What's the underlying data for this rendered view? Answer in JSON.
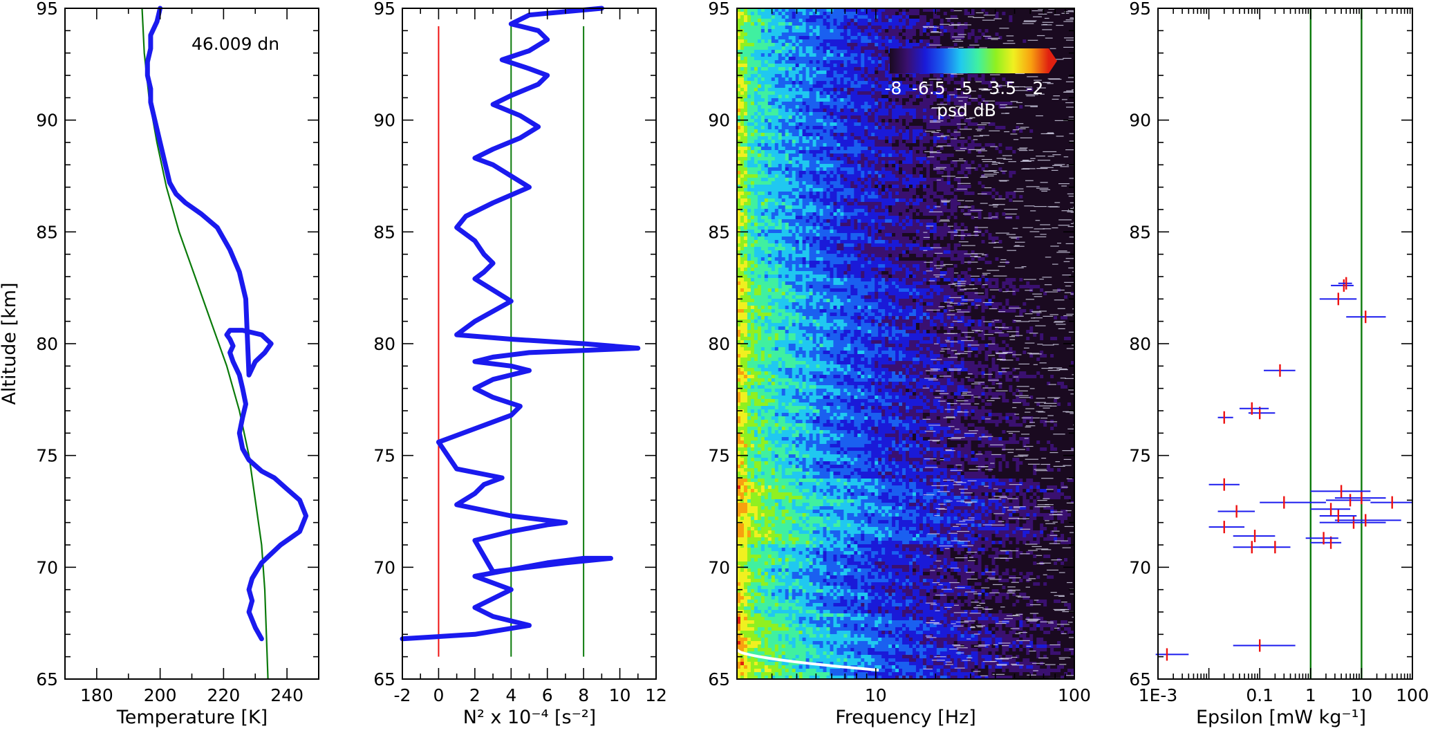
{
  "figure": {
    "ylabel": "Altitude [km]"
  },
  "chart_data": [
    {
      "type": "line",
      "xlabel": "Temperature [K]",
      "ylabel": "Altitude [km]",
      "xlim": [
        170,
        250
      ],
      "ylim": [
        65,
        95
      ],
      "xticks": [
        180,
        200,
        220,
        240
      ],
      "yticks": [
        65,
        70,
        75,
        80,
        85,
        90,
        95
      ],
      "annotation": "46.009 dn",
      "series": [
        {
          "color": "#1a1aee",
          "x": [
            232,
            230,
            228,
            229,
            228,
            229,
            232,
            238,
            244,
            246,
            244,
            240,
            236,
            232,
            228,
            226,
            225,
            226,
            227,
            226,
            225,
            223,
            222,
            223,
            222,
            221,
            222,
            226,
            232,
            235,
            233,
            230,
            228,
            227,
            226,
            225,
            222,
            218,
            213,
            208,
            205,
            203,
            202,
            201,
            200,
            199,
            198,
            197,
            197,
            196,
            196,
            197,
            197,
            199,
            200
          ],
          "y": [
            66.8,
            67.3,
            68,
            68.5,
            69,
            69.5,
            70.2,
            71,
            71.6,
            72.3,
            73,
            73.5,
            74,
            74.3,
            74.8,
            75.3,
            76,
            76.7,
            77.3,
            78,
            78.6,
            79.2,
            79.6,
            79.9,
            80.2,
            80.4,
            80.6,
            80.6,
            80.4,
            80,
            79.6,
            79.2,
            78.6,
            82,
            82.6,
            83.2,
            84.2,
            85.2,
            85.8,
            86.3,
            86.7,
            87.2,
            87.8,
            88.4,
            89,
            89.6,
            90.2,
            90.8,
            91.4,
            92,
            92.6,
            93.2,
            93.8,
            94.4,
            95
          ]
        },
        {
          "color": "#0a7a0a",
          "x": [
            234,
            233.5,
            233,
            232,
            230,
            228,
            225,
            221,
            216,
            211,
            206,
            202,
            199,
            196.5,
            195,
            194.3
          ],
          "y": [
            65,
            67,
            69,
            71,
            73,
            75,
            77,
            79,
            81,
            83,
            85,
            87,
            89,
            91,
            93,
            95
          ]
        }
      ]
    },
    {
      "type": "line",
      "xlabel": "N² x 10⁻⁴ [s⁻²]",
      "ylabel": "Altitude [km]",
      "xlim": [
        -2,
        12
      ],
      "ylim": [
        65,
        95
      ],
      "xticks": [
        -2,
        0,
        2,
        4,
        6,
        8,
        10,
        12
      ],
      "yticks": [
        65,
        70,
        75,
        80,
        85,
        90,
        95
      ],
      "reference_lines": [
        {
          "x": 0,
          "color": "#ee1111"
        },
        {
          "x": 4,
          "color": "#0a7a0a"
        },
        {
          "x": 8,
          "color": "#0a7a0a"
        }
      ],
      "series": [
        {
          "color": "#1a1aee",
          "x": [
            -2,
            2,
            5,
            3,
            2,
            3,
            4,
            3,
            2,
            4,
            6,
            8,
            9.5,
            7,
            5,
            3,
            2,
            4,
            6,
            7,
            4,
            1,
            2,
            2.5,
            3.5,
            1,
            0,
            1,
            2,
            3,
            4,
            4.5,
            3,
            2,
            3,
            5,
            4,
            2,
            3,
            5,
            8,
            11,
            8,
            4,
            1,
            2,
            4,
            3,
            2,
            2.5,
            3,
            2.5,
            2,
            1,
            1.5,
            3,
            5,
            4,
            3,
            2,
            3,
            4.5,
            5.5,
            4.5,
            3,
            4,
            5.5,
            6,
            5,
            3.5,
            5,
            6,
            5.5,
            4,
            5,
            9
          ],
          "y": [
            66.8,
            67,
            67.4,
            67.8,
            68.2,
            68.6,
            69,
            69.3,
            69.6,
            69.9,
            70.2,
            70.4,
            70.4,
            70.2,
            70,
            69.8,
            71.2,
            71.6,
            71.9,
            72,
            72.3,
            72.8,
            73.3,
            73.7,
            74,
            74.4,
            75.6,
            75.9,
            76.2,
            76.5,
            76.8,
            77.2,
            77.6,
            78,
            78.4,
            78.8,
            79,
            79.2,
            79.4,
            79.6,
            79.7,
            79.8,
            80,
            80.2,
            80.4,
            81,
            81.9,
            82.4,
            82.9,
            83.2,
            83.6,
            84,
            84.6,
            85.2,
            85.7,
            86.3,
            87,
            87.5,
            88,
            88.3,
            88.7,
            89.2,
            89.7,
            90.2,
            90.7,
            91.1,
            91.6,
            92,
            92.3,
            92.7,
            93.1,
            93.6,
            94,
            94.3,
            94.7,
            95
          ]
        }
      ]
    },
    {
      "type": "heatmap",
      "xlabel": "Frequency [Hz]",
      "ylabel": "Altitude [km]",
      "xscale": "log",
      "xlim": [
        2,
        100
      ],
      "ylim": [
        65,
        95
      ],
      "xticks": [
        10,
        100
      ],
      "yticks": [
        65,
        70,
        75,
        80,
        85,
        90,
        95
      ],
      "colorbar": {
        "ticks": [
          "-8",
          "-6.5",
          "-5",
          "-3.5",
          "-2"
        ],
        "label": "psd dB",
        "colors": [
          "#1a0a20",
          "#3a1070",
          "#1a1ad8",
          "#1a60f0",
          "#20c8f0",
          "#40f0a0",
          "#90f020",
          "#f0f020",
          "#f8a010",
          "#e02010"
        ]
      }
    },
    {
      "type": "scatter",
      "xlabel": "Epsilon [mW kg⁻¹]",
      "ylabel": "Altitude [km]",
      "xscale": "log",
      "xlim": [
        0.001,
        100
      ],
      "ylim": [
        65,
        95
      ],
      "xtick_labels": [
        {
          "value": 0.001,
          "label": "1E-3"
        },
        {
          "value": 0.1,
          "label": "0.1"
        },
        {
          "value": 1,
          "label": "1"
        },
        {
          "value": 10,
          "label": "10"
        },
        {
          "value": 100,
          "label": "100"
        }
      ],
      "yticks": [
        65,
        70,
        75,
        80,
        85,
        90,
        95
      ],
      "reference_lines": [
        {
          "x": 1,
          "color": "#0a7a0a"
        },
        {
          "x": 10,
          "color": "#0a7a0a"
        }
      ],
      "points": [
        {
          "x": 0.0015,
          "y": 66.1,
          "xerr": [
            0.0009,
            0.004
          ]
        },
        {
          "x": 0.1,
          "y": 66.5,
          "xerr": [
            0.03,
            0.5
          ]
        },
        {
          "x": 0.07,
          "y": 70.9,
          "xerr": [
            0.03,
            0.2
          ]
        },
        {
          "x": 0.2,
          "y": 70.9,
          "xerr": [
            0.1,
            0.4
          ]
        },
        {
          "x": 2.5,
          "y": 71.1,
          "xerr": [
            1.0,
            4.0
          ]
        },
        {
          "x": 0.08,
          "y": 71.4,
          "xerr": [
            0.03,
            0.2
          ]
        },
        {
          "x": 1.8,
          "y": 71.3,
          "xerr": [
            0.8,
            3.5
          ]
        },
        {
          "x": 0.02,
          "y": 71.8,
          "xerr": [
            0.01,
            0.05
          ]
        },
        {
          "x": 7,
          "y": 72.0,
          "xerr": [
            1.5,
            30
          ]
        },
        {
          "x": 12,
          "y": 72.1,
          "xerr": [
            3,
            60
          ]
        },
        {
          "x": 3.5,
          "y": 72.3,
          "xerr": [
            1.5,
            8
          ]
        },
        {
          "x": 0.035,
          "y": 72.5,
          "xerr": [
            0.015,
            0.08
          ]
        },
        {
          "x": 2.5,
          "y": 72.6,
          "xerr": [
            1.0,
            6
          ]
        },
        {
          "x": 0.3,
          "y": 72.9,
          "xerr": [
            0.1,
            2
          ]
        },
        {
          "x": 6,
          "y": 73.0,
          "xerr": [
            2,
            15
          ]
        },
        {
          "x": 10,
          "y": 73.1,
          "xerr": [
            3,
            30
          ]
        },
        {
          "x": 40,
          "y": 72.9,
          "xerr": [
            15,
            100
          ]
        },
        {
          "x": 4,
          "y": 73.4,
          "xerr": [
            1,
            15
          ]
        },
        {
          "x": 0.02,
          "y": 73.7,
          "xerr": [
            0.01,
            0.04
          ]
        },
        {
          "x": 0.02,
          "y": 76.7,
          "xerr": [
            0.015,
            0.03
          ]
        },
        {
          "x": 0.1,
          "y": 76.9,
          "xerr": [
            0.06,
            0.2
          ]
        },
        {
          "x": 0.07,
          "y": 77.1,
          "xerr": [
            0.04,
            0.15
          ]
        },
        {
          "x": 0.25,
          "y": 78.8,
          "xerr": [
            0.12,
            0.5
          ]
        },
        {
          "x": 12,
          "y": 81.2,
          "xerr": [
            5,
            30
          ]
        },
        {
          "x": 3.5,
          "y": 82.0,
          "xerr": [
            1.5,
            8
          ]
        },
        {
          "x": 4.5,
          "y": 82.6,
          "xerr": [
            2.5,
            7
          ]
        },
        {
          "x": 5,
          "y": 82.7,
          "xerr": [
            3.5,
            6.5
          ]
        }
      ]
    }
  ]
}
